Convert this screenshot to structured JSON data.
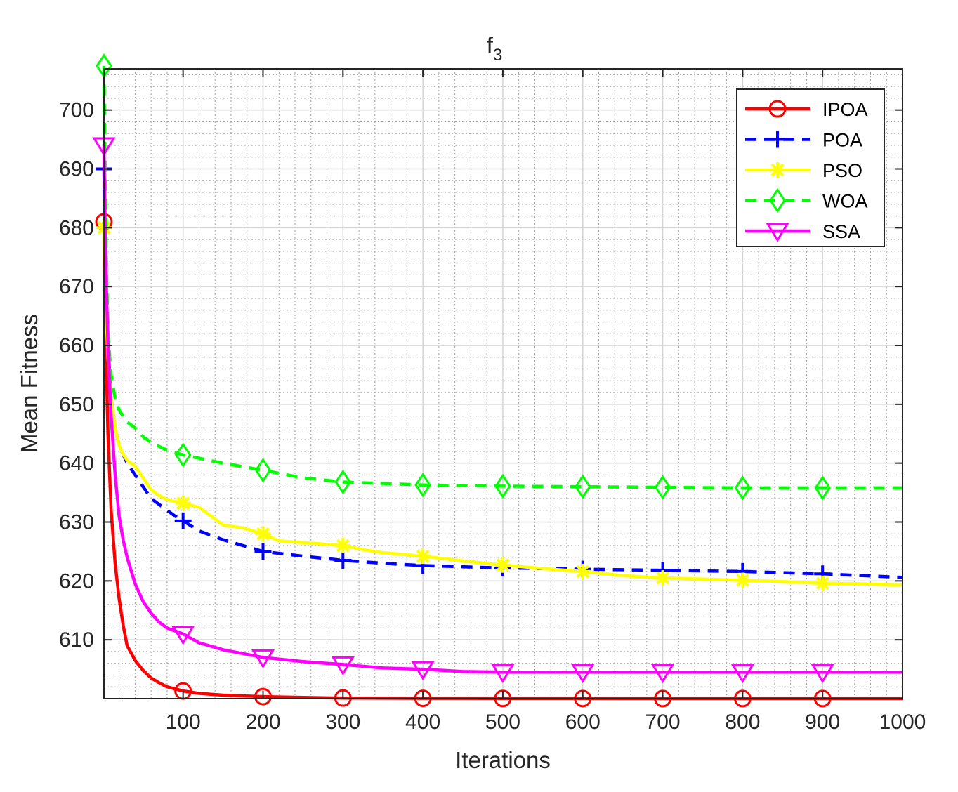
{
  "chart_data": {
    "type": "line",
    "title": "f",
    "title_subscript": "3",
    "xlabel": "Iterations",
    "ylabel": "Mean Fitness",
    "xlim": [
      1,
      1000
    ],
    "ylim": [
      600,
      707
    ],
    "xticks": [
      100,
      200,
      300,
      400,
      500,
      600,
      700,
      800,
      900,
      1000
    ],
    "yticks": [
      610,
      620,
      630,
      640,
      650,
      660,
      670,
      680,
      690,
      700
    ],
    "xtick_labels": [
      "100",
      "200",
      "300",
      "400",
      "500",
      "600",
      "700",
      "800",
      "900",
      "1000"
    ],
    "ytick_labels": [
      "610",
      "620",
      "630",
      "640",
      "650",
      "660",
      "670",
      "680",
      "690",
      "700"
    ],
    "grid": true,
    "minor_grid": true,
    "legend_position": "top-right",
    "series": [
      {
        "name": "IPOA",
        "color": "#ff0000",
        "dash": "solid",
        "marker": "circle",
        "x": [
          1,
          3,
          6,
          10,
          15,
          20,
          25,
          30,
          40,
          50,
          60,
          70,
          80,
          100,
          120,
          150,
          200,
          250,
          300,
          400,
          500,
          600,
          700,
          800,
          900,
          1000
        ],
        "y": [
          681,
          662,
          645,
          632,
          623,
          617,
          612.5,
          609,
          606.5,
          604.8,
          603.5,
          602.7,
          602,
          601.3,
          600.9,
          600.6,
          600.35,
          600.2,
          600.1,
          600.05,
          600.03,
          600.02,
          600.01,
          600.01,
          600.01,
          600.01
        ]
      },
      {
        "name": "POA",
        "color": "#0000ff",
        "dash": "dashed",
        "marker": "plus",
        "x": [
          1,
          3,
          6,
          10,
          15,
          20,
          30,
          40,
          50,
          60,
          70,
          80,
          90,
          100,
          120,
          150,
          200,
          250,
          300,
          350,
          400,
          450,
          500,
          550,
          600,
          650,
          700,
          750,
          800,
          850,
          900,
          950,
          1000
        ],
        "y": [
          690,
          672,
          660,
          651,
          646,
          643,
          640,
          638,
          636,
          634,
          633,
          632,
          631,
          630.2,
          628.5,
          627,
          625,
          624.2,
          623.5,
          623,
          622.6,
          622.4,
          622.2,
          622.1,
          622,
          621.9,
          621.8,
          621.7,
          621.6,
          621.4,
          621.2,
          620.9,
          620.6
        ]
      },
      {
        "name": "PSO",
        "color": "#ffff00",
        "dash": "solid",
        "marker": "asterisk",
        "x": [
          1,
          3,
          6,
          10,
          15,
          20,
          25,
          30,
          40,
          50,
          60,
          70,
          80,
          90,
          100,
          120,
          150,
          175,
          200,
          220,
          250,
          300,
          330,
          350,
          400,
          450,
          500,
          550,
          600,
          650,
          700,
          750,
          800,
          850,
          900,
          950,
          1000
        ],
        "y": [
          680,
          668,
          658,
          651,
          646,
          643,
          641.5,
          640.5,
          639.5,
          637.5,
          635.5,
          634.5,
          633.8,
          633.5,
          633.2,
          632.5,
          629.5,
          629,
          628,
          626.8,
          626.5,
          626,
          625.2,
          624.8,
          624.2,
          623.4,
          622.7,
          622.1,
          621.6,
          620.9,
          620.5,
          620.3,
          620.1,
          619.9,
          619.6,
          619.5,
          619.3
        ]
      },
      {
        "name": "WOA",
        "color": "#00ff00",
        "dash": "dashed",
        "marker": "diamond",
        "x": [
          1,
          2,
          4,
          6,
          10,
          15,
          20,
          30,
          40,
          50,
          60,
          80,
          100,
          150,
          200,
          250,
          300,
          400,
          500,
          600,
          700,
          800,
          900,
          1000
        ],
        "y": [
          707.5,
          695,
          675,
          662,
          655,
          651,
          649,
          647,
          646,
          644.5,
          643.5,
          642.2,
          641.4,
          640,
          638.8,
          637.5,
          636.8,
          636.3,
          636.1,
          636,
          635.9,
          635.8,
          635.8,
          635.8
        ]
      },
      {
        "name": "SSA",
        "color": "#ff00ff",
        "dash": "solid",
        "marker": "triangle-down",
        "x": [
          1,
          3,
          6,
          10,
          15,
          20,
          25,
          30,
          40,
          50,
          60,
          70,
          80,
          100,
          120,
          150,
          200,
          250,
          300,
          350,
          400,
          450,
          500,
          600,
          700,
          800,
          900,
          1000
        ],
        "y": [
          694,
          675,
          660,
          648,
          638,
          631,
          627,
          624,
          619.5,
          616.5,
          614.5,
          613,
          612,
          611,
          609.5,
          608.3,
          607,
          606.3,
          605.8,
          605.2,
          605,
          604.6,
          604.5,
          604.5,
          604.5,
          604.5,
          604.5,
          604.5
        ]
      }
    ]
  }
}
